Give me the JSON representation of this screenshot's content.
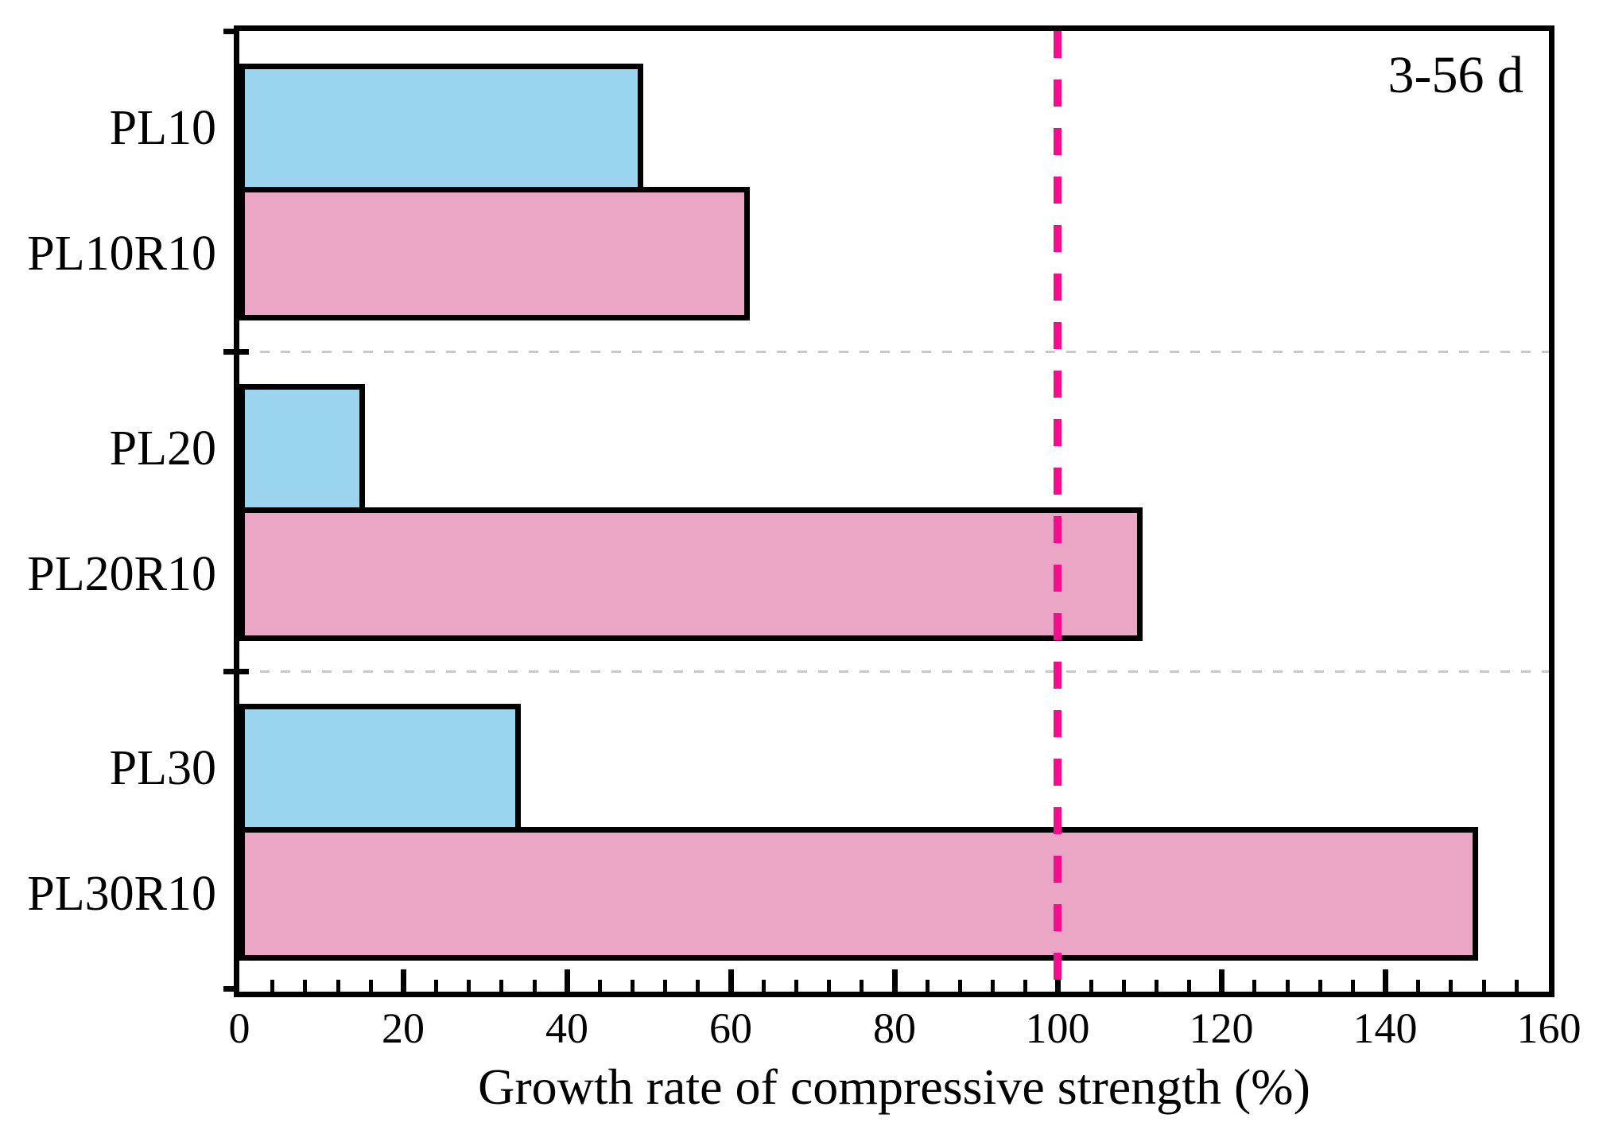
{
  "chart_data": {
    "type": "bar",
    "orientation": "horizontal",
    "annotation": "3-56 d",
    "xlabel": "Growth rate of compressive strength (%)",
    "ylabel": "",
    "xlim": [
      0,
      160
    ],
    "x_major_ticks": [
      0,
      20,
      40,
      60,
      80,
      100,
      120,
      140,
      160
    ],
    "x_minor_tick_interval": 4,
    "categories": [
      "PL10",
      "PL10R10",
      "PL20",
      "PL20R10",
      "PL30",
      "PL30R10"
    ],
    "values": [
      49,
      62,
      15,
      110,
      34,
      151
    ],
    "bar_colors": [
      "#9ad4ef",
      "#eaa6c4",
      "#9ad4ef",
      "#eaa6c4",
      "#9ad4ef",
      "#eaa6c4"
    ],
    "bar_edge_color": "#000000",
    "reference_line": {
      "x": 100,
      "color": "#f40e8d",
      "style": "dashed"
    },
    "group_separator_color": "#c9c9c9",
    "grid": "dashed separators between bar pairs",
    "legend_position": "none"
  }
}
